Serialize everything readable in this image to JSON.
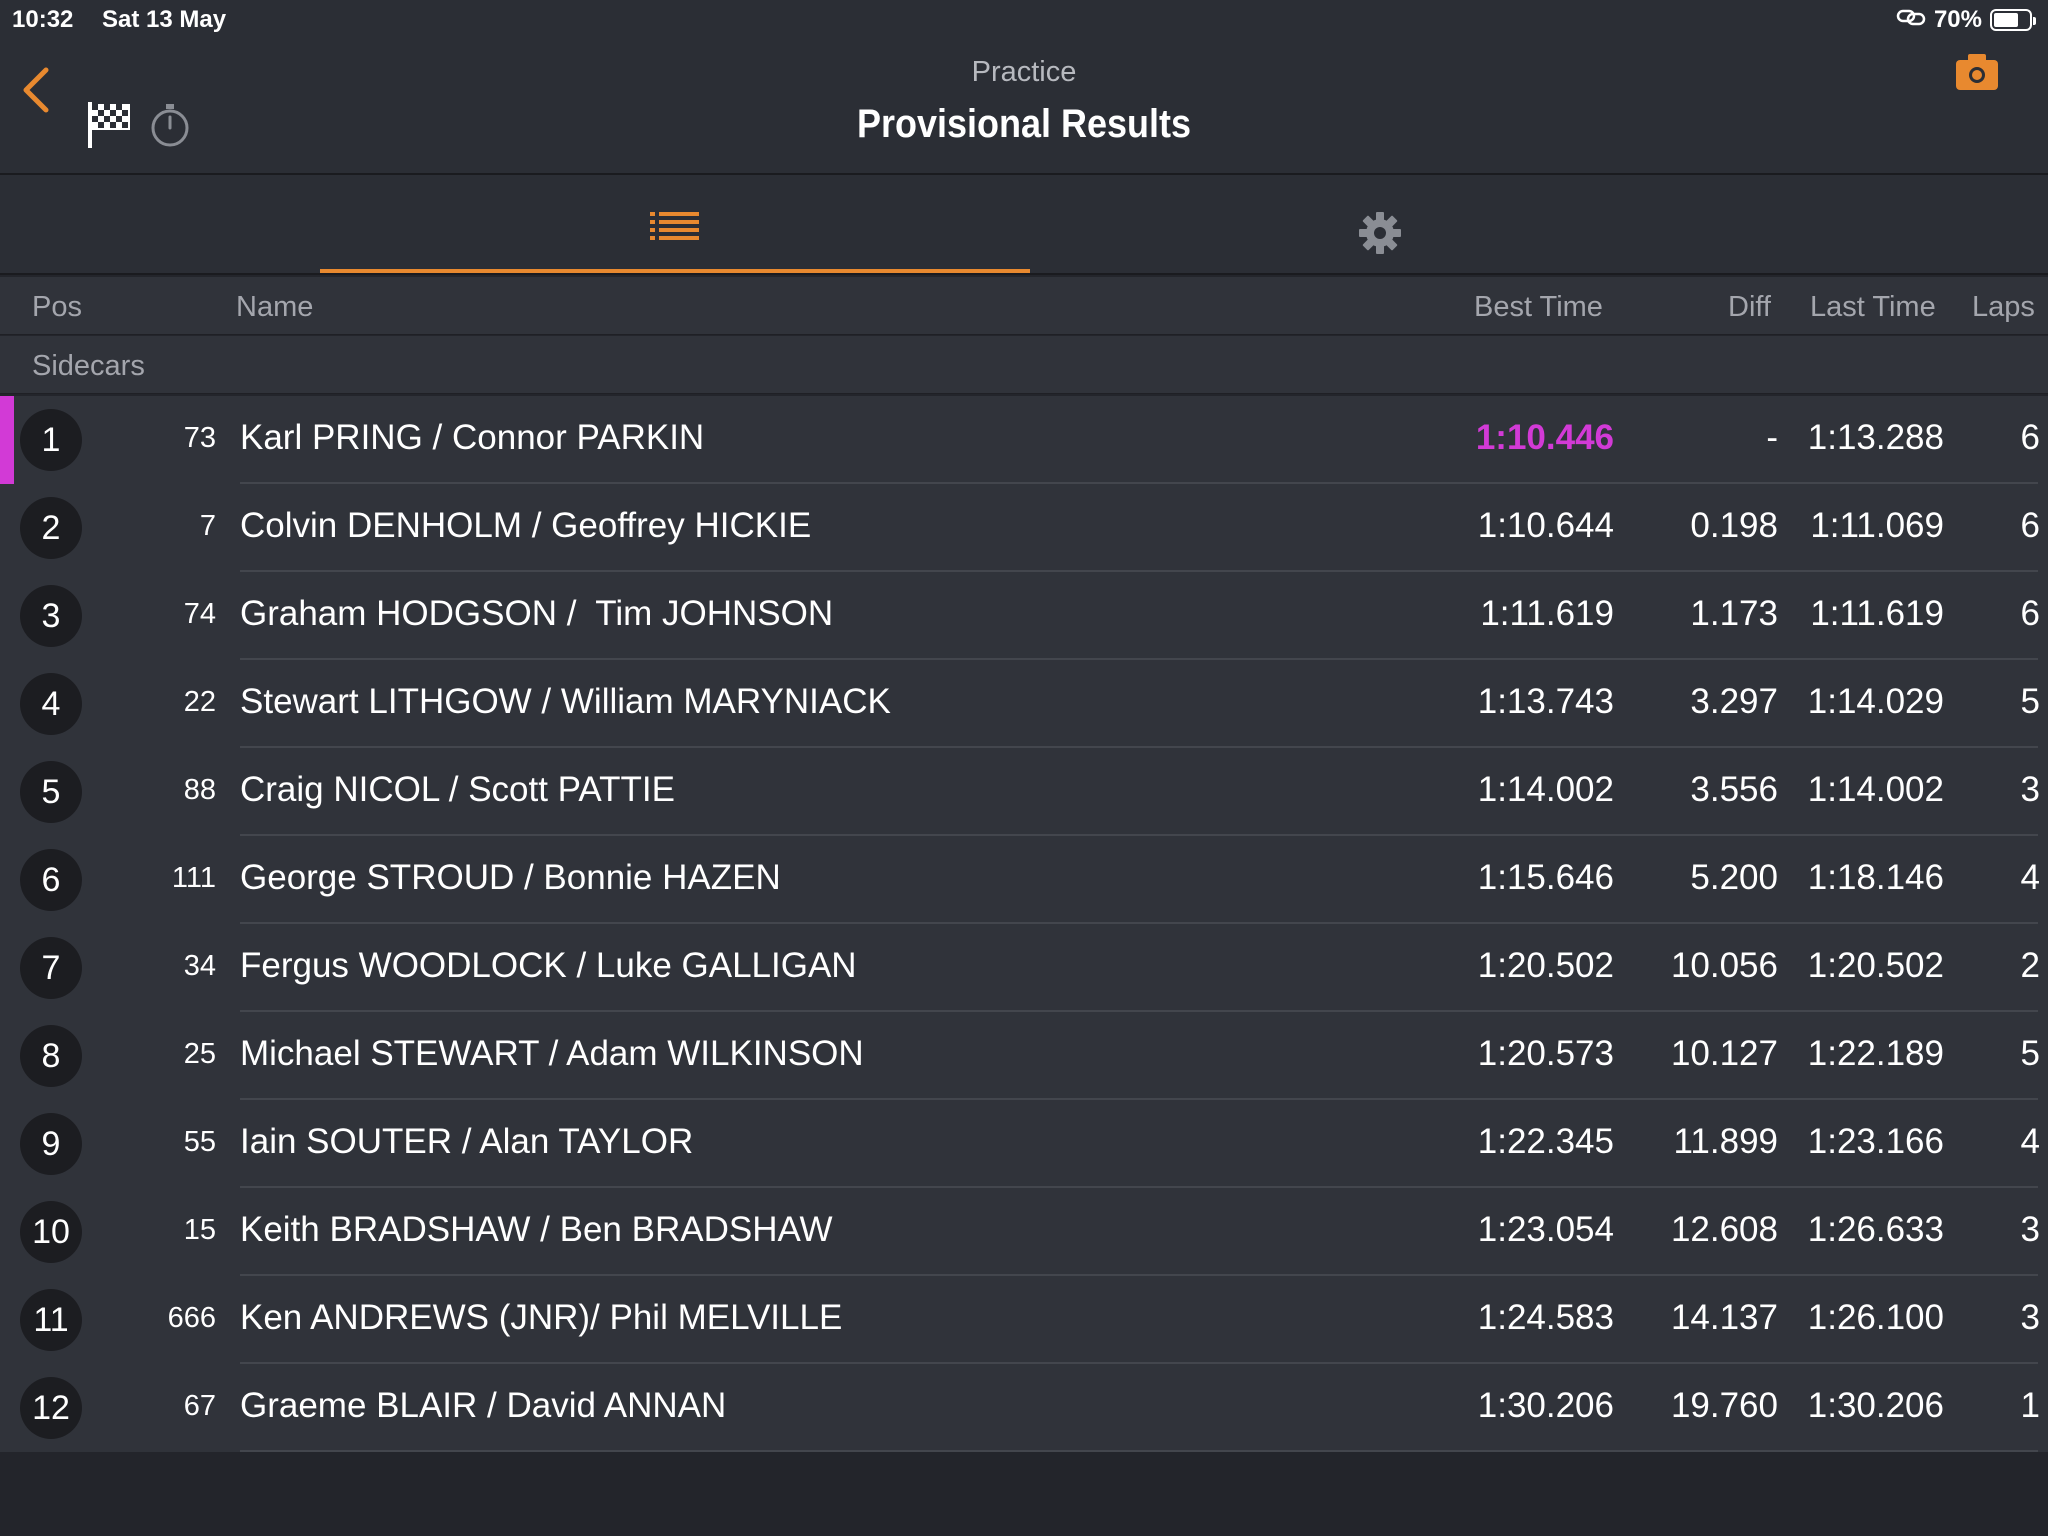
{
  "status_bar": {
    "time": "10:32",
    "date": "Sat 13 May",
    "battery": "70%",
    "battery_level": 0.7
  },
  "nav": {
    "subtitle": "Practice",
    "title": "Provisional Results",
    "accent_color": "#e8892f"
  },
  "tabs": {
    "active": "list",
    "items": [
      "list-icon",
      "gear-icon"
    ]
  },
  "columns": {
    "pos": "Pos",
    "name": "Name",
    "best": "Best Time",
    "diff": "Diff",
    "last": "Last Time",
    "laps": "Laps"
  },
  "group": "Sidecars",
  "fastest_color": "#d23ad6",
  "rows": [
    {
      "pos": "1",
      "num": "73",
      "name": "Karl PRING / Connor PARKIN",
      "best": "1:10.446",
      "diff": "-",
      "last": "1:13.288",
      "laps": "6"
    },
    {
      "pos": "2",
      "num": "7",
      "name": "Colvin DENHOLM / Geoffrey HICKIE",
      "best": "1:10.644",
      "diff": "0.198",
      "last": "1:11.069",
      "laps": "6"
    },
    {
      "pos": "3",
      "num": "74",
      "name": "Graham HODGSON /  Tim JOHNSON",
      "best": "1:11.619",
      "diff": "1.173",
      "last": "1:11.619",
      "laps": "6"
    },
    {
      "pos": "4",
      "num": "22",
      "name": "Stewart LITHGOW / William MARYNIACK",
      "best": "1:13.743",
      "diff": "3.297",
      "last": "1:14.029",
      "laps": "5"
    },
    {
      "pos": "5",
      "num": "88",
      "name": "Craig NICOL / Scott PATTIE",
      "best": "1:14.002",
      "diff": "3.556",
      "last": "1:14.002",
      "laps": "3"
    },
    {
      "pos": "6",
      "num": "111",
      "name": "George STROUD / Bonnie HAZEN",
      "best": "1:15.646",
      "diff": "5.200",
      "last": "1:18.146",
      "laps": "4"
    },
    {
      "pos": "7",
      "num": "34",
      "name": "Fergus WOODLOCK / Luke GALLIGAN",
      "best": "1:20.502",
      "diff": "10.056",
      "last": "1:20.502",
      "laps": "2"
    },
    {
      "pos": "8",
      "num": "25",
      "name": "Michael STEWART / Adam WILKINSON",
      "best": "1:20.573",
      "diff": "10.127",
      "last": "1:22.189",
      "laps": "5"
    },
    {
      "pos": "9",
      "num": "55",
      "name": "Iain SOUTER / Alan TAYLOR",
      "best": "1:22.345",
      "diff": "11.899",
      "last": "1:23.166",
      "laps": "4"
    },
    {
      "pos": "10",
      "num": "15",
      "name": "Keith BRADSHAW / Ben BRADSHAW",
      "best": "1:23.054",
      "diff": "12.608",
      "last": "1:26.633",
      "laps": "3"
    },
    {
      "pos": "11",
      "num": "666",
      "name": "Ken ANDREWS (JNR)/ Phil MELVILLE",
      "best": "1:24.583",
      "diff": "14.137",
      "last": "1:26.100",
      "laps": "3"
    },
    {
      "pos": "12",
      "num": "67",
      "name": "Graeme BLAIR / David ANNAN",
      "best": "1:30.206",
      "diff": "19.760",
      "last": "1:30.206",
      "laps": "1"
    }
  ]
}
